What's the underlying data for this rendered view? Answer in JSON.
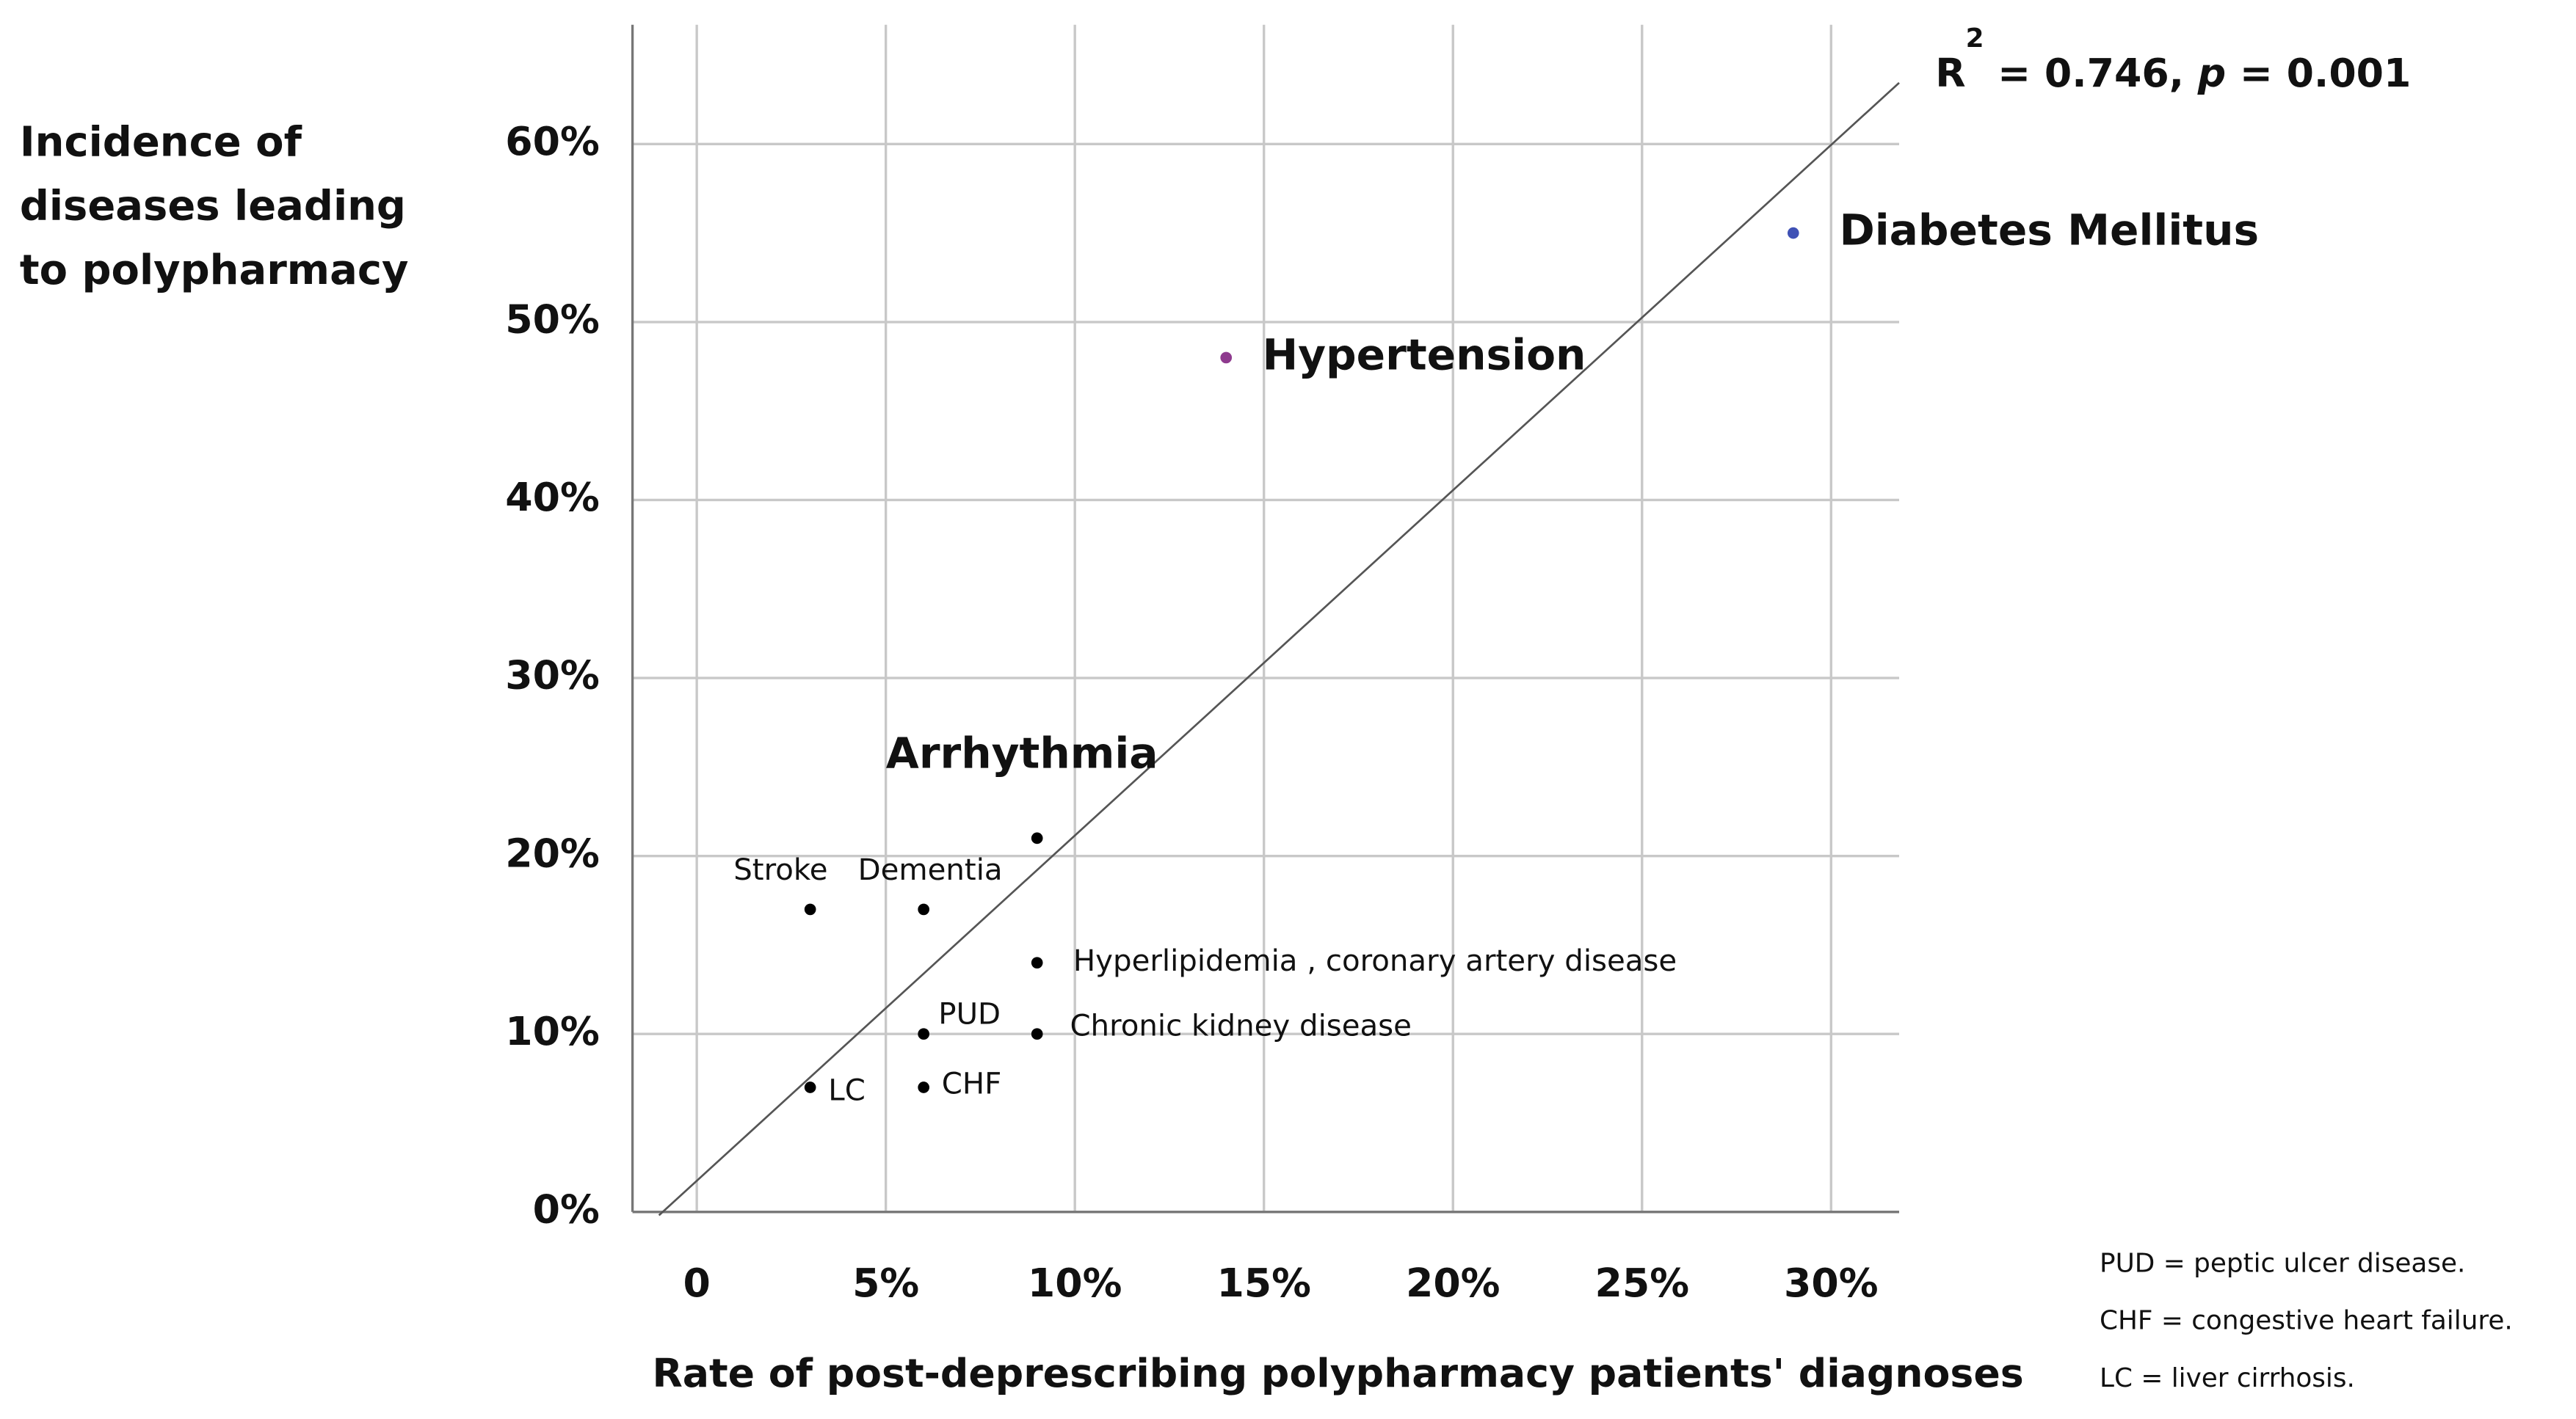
{
  "chart_data": {
    "type": "scatter",
    "y_label_lines": [
      "Incidence of",
      "diseases leading",
      "to polypharmacy"
    ],
    "x_label": "Rate of post-deprescribing polypharmacy patients' diagnoses",
    "annotation_parts": [
      "R",
      "2",
      " = 0.746, ",
      "p",
      " = 0.001"
    ],
    "x": [
      29,
      14,
      9,
      3,
      6,
      9,
      6,
      9,
      3,
      6
    ],
    "values": [
      55,
      48,
      21,
      17,
      17,
      14,
      10,
      10,
      7,
      7
    ],
    "point_labels": [
      "Diabetes Mellitus",
      "Hypertension",
      "Arrhythmia",
      "Stroke",
      "Dementia",
      "Hyperlipidemia , coronary artery disease",
      "PUD",
      "Chronic kidney disease",
      "LC",
      "CHF"
    ],
    "point_colors": [
      "#3f51b5",
      "#8e3a8e",
      "#000000",
      "#000000",
      "#000000",
      "#000000",
      "#000000",
      "#000000",
      "#000000",
      "#000000"
    ],
    "trendline": {
      "slope": 1.94,
      "intercept": 1.75,
      "color": "#555555"
    },
    "xlim": [
      -1.7,
      31.8
    ],
    "ylim": [
      0,
      66.7
    ],
    "xticks": [
      0,
      {
        "value": 5,
        "label": "5%"
      },
      {
        "value": 10,
        "label": "10%"
      },
      {
        "value": 15,
        "label": "15%"
      },
      {
        "value": 20,
        "label": "20%"
      },
      {
        "value": 25,
        "label": "25%"
      },
      {
        "value": 30,
        "label": "30%"
      }
    ],
    "yticks": [
      {
        "value": 0,
        "label": "0%"
      },
      {
        "value": 10,
        "label": "10%"
      },
      {
        "value": 20,
        "label": "20%"
      },
      {
        "value": 30,
        "label": "30%"
      },
      {
        "value": 40,
        "label": "40%"
      },
      {
        "value": 50,
        "label": "50%"
      },
      {
        "value": 60,
        "label": "60%"
      }
    ],
    "grid": true,
    "footnotes": [
      "PUD = peptic ulcer disease.",
      "CHF = congestive heart failure.",
      "LC = liver cirrhosis."
    ]
  }
}
